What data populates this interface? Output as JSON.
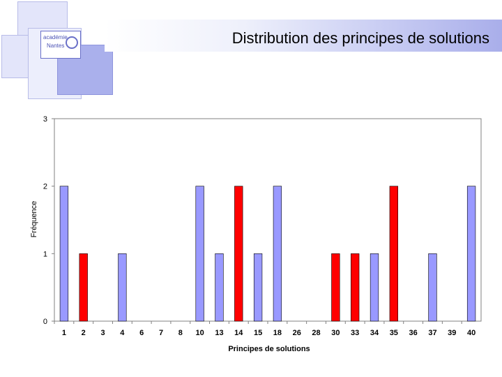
{
  "header": {
    "title": "Distribution des principes de solutions",
    "logo_text_line1": "académie",
    "logo_text_line2": "Nantes"
  },
  "colors": {
    "blue_bar": "#9999ff",
    "red_bar": "#ff0000",
    "bar_outline": "#000000"
  },
  "chart_data": {
    "type": "bar",
    "title": "",
    "xlabel": "Principes de solutions",
    "ylabel": "Fréquence",
    "ylim": [
      0,
      3
    ],
    "yticks": [
      0,
      1,
      2,
      3
    ],
    "grid": false,
    "categories": [
      "1",
      "2",
      "3",
      "4",
      "6",
      "7",
      "8",
      "10",
      "13",
      "14",
      "15",
      "18",
      "26",
      "28",
      "30",
      "33",
      "34",
      "35",
      "36",
      "37",
      "39",
      "40"
    ],
    "values": [
      2,
      1,
      0,
      1,
      0,
      0,
      0,
      2,
      1,
      2,
      1,
      2,
      0,
      0,
      1,
      1,
      1,
      2,
      0,
      1,
      0,
      2
    ],
    "bar_colors": [
      "blue",
      "red",
      "blue",
      "blue",
      "blue",
      "blue",
      "blue",
      "blue",
      "blue",
      "red",
      "blue",
      "blue",
      "blue",
      "blue",
      "red",
      "red",
      "blue",
      "red",
      "blue",
      "blue",
      "blue",
      "blue"
    ]
  }
}
